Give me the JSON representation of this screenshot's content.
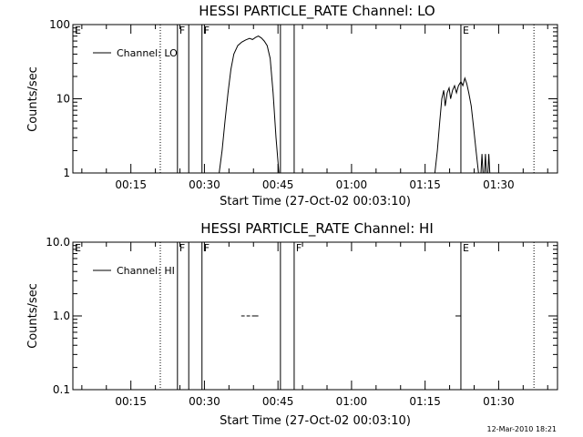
{
  "footer": {
    "timestamp": "12-Mar-2010 18:21"
  },
  "chart_data": [
    {
      "type": "line",
      "title": "HESSI PARTICLE_RATE Channel: LO",
      "xlabel": "Start Time (27-Oct-02 00:03:10)",
      "ylabel": "Counts/sec",
      "yscale": "log",
      "ylim": [
        1,
        100
      ],
      "ytick_labels": [
        "1",
        "10",
        "100"
      ],
      "xlim_minutes": [
        3.17,
        102
      ],
      "xtick_labels": [
        "00:15",
        "00:30",
        "00:45",
        "01:00",
        "01:15",
        "01:30"
      ],
      "legend": {
        "label": "Channel: LO",
        "placement": "top-left"
      },
      "flags": [
        {
          "label": "E",
          "style": "dotted",
          "time_minutes": 3.17
        },
        {
          "label": "F",
          "style": "solid",
          "time_minutes": 24.5
        },
        {
          "label": "F",
          "style": "solid",
          "time_minutes": 29.5
        },
        {
          "label": "E",
          "style": "solid",
          "time_minutes": 82.3
        }
      ],
      "markers": [
        {
          "style": "dotted",
          "time_minutes": 21.0
        },
        {
          "style": "solid",
          "time_minutes": 26.8
        },
        {
          "style": "solid",
          "time_minutes": 45.5
        },
        {
          "style": "solid",
          "time_minutes": 48.3
        },
        {
          "style": "dotted",
          "time_minutes": 97.2
        }
      ],
      "series": [
        {
          "segments": [
            [
              [
                33.0,
                1.0
              ],
              [
                33.6,
                2.0
              ],
              [
                34.2,
                5.0
              ],
              [
                34.8,
                12
              ],
              [
                35.4,
                25
              ],
              [
                36.0,
                40
              ],
              [
                36.8,
                52
              ],
              [
                37.6,
                58
              ],
              [
                38.4,
                62
              ],
              [
                39.2,
                65
              ],
              [
                39.8,
                63
              ],
              [
                40.4,
                67
              ],
              [
                41.0,
                70
              ],
              [
                41.6,
                66
              ],
              [
                42.2,
                60
              ],
              [
                42.8,
                52
              ],
              [
                43.4,
                35
              ],
              [
                44.0,
                12
              ],
              [
                44.6,
                3
              ],
              [
                45.2,
                1.0
              ]
            ],
            [
              [
                77.0,
                1.0
              ],
              [
                77.5,
                2.0
              ],
              [
                78.0,
                5.0
              ],
              [
                78.4,
                10
              ],
              [
                78.8,
                13
              ],
              [
                79.1,
                8
              ],
              [
                79.5,
                12
              ],
              [
                79.9,
                14
              ],
              [
                80.2,
                10
              ],
              [
                80.6,
                13
              ],
              [
                81.0,
                15
              ],
              [
                81.4,
                12
              ],
              [
                81.8,
                15
              ],
              [
                82.3,
                17
              ],
              [
                82.7,
                15
              ],
              [
                83.1,
                19
              ],
              [
                83.5,
                16
              ],
              [
                83.9,
                12
              ],
              [
                84.4,
                8
              ],
              [
                84.9,
                4
              ],
              [
                85.4,
                2
              ],
              [
                85.9,
                1.0
              ]
            ],
            [
              [
                86.4,
                1.0
              ],
              [
                86.6,
                1.8
              ],
              [
                86.8,
                1.0
              ]
            ],
            [
              [
                87.1,
                1.0
              ],
              [
                87.3,
                1.8
              ],
              [
                87.5,
                1.0
              ]
            ],
            [
              [
                87.8,
                1.0
              ],
              [
                88.0,
                1.8
              ],
              [
                88.2,
                1.0
              ]
            ]
          ]
        }
      ]
    },
    {
      "type": "line",
      "title": "HESSI PARTICLE_RATE Channel: HI",
      "xlabel": "Start Time (27-Oct-02 00:03:10)",
      "ylabel": "Counts/sec",
      "yscale": "log",
      "ylim": [
        0.1,
        10
      ],
      "ytick_labels": [
        "0.1",
        "1.0",
        "10.0"
      ],
      "xlim_minutes": [
        3.17,
        102
      ],
      "xtick_labels": [
        "00:15",
        "00:30",
        "00:45",
        "01:00",
        "01:15",
        "01:30"
      ],
      "legend": {
        "label": "Channel: HI",
        "placement": "top-left"
      },
      "flags": [
        {
          "label": "E",
          "style": "dotted",
          "time_minutes": 3.17
        },
        {
          "label": "F",
          "style": "solid",
          "time_minutes": 24.5
        },
        {
          "label": "F",
          "style": "solid",
          "time_minutes": 29.5
        },
        {
          "label": "F",
          "style": "solid",
          "time_minutes": 48.3
        },
        {
          "label": "E",
          "style": "solid",
          "time_minutes": 82.3
        }
      ],
      "markers": [
        {
          "style": "dotted",
          "time_minutes": 21.0
        },
        {
          "style": "solid",
          "time_minutes": 26.8
        },
        {
          "style": "solid",
          "time_minutes": 45.5
        },
        {
          "style": "dotted",
          "time_minutes": 97.2
        }
      ],
      "series": [
        {
          "segments": [
            [
              [
                37.5,
                1.0
              ],
              [
                38.2,
                1.0
              ]
            ],
            [
              [
                38.6,
                1.0
              ],
              [
                39.3,
                1.0
              ]
            ],
            [
              [
                39.7,
                1.0
              ],
              [
                41.0,
                1.0
              ]
            ],
            [
              [
                81.2,
                1.0
              ],
              [
                82.3,
                1.0
              ]
            ]
          ]
        }
      ]
    }
  ]
}
